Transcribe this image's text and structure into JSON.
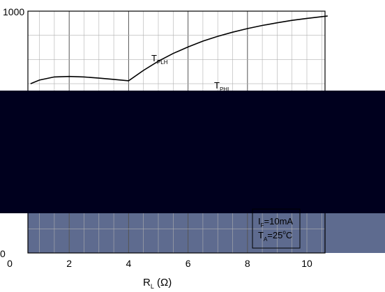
{
  "chart_data": {
    "type": "line",
    "title": "",
    "xlabel": "",
    "ylabel": "",
    "x_ticks": [
      "0",
      "2",
      "4",
      "6",
      "8",
      "10"
    ],
    "y_ticks": [
      "0",
      "1000"
    ],
    "xlim": [
      0,
      10
    ],
    "ylim": [
      0,
      1000
    ],
    "grid": true,
    "series": [
      {
        "name": "T_PLH",
        "x": [
          0.7,
          1.0,
          1.5,
          2.0,
          2.5,
          3.0,
          3.5,
          4.0,
          4.5,
          5.0,
          5.5,
          6.0,
          6.5,
          7.0,
          7.5,
          8.0,
          8.5,
          9.0,
          9.5,
          10.0,
          10.7
        ],
        "y": [
          700,
          715,
          728,
          730,
          728,
          723,
          718,
          712,
          755,
          793,
          825,
          852,
          876,
          896,
          913,
          928,
          941,
          952,
          962,
          970,
          980
        ]
      }
    ],
    "curve_labels": {
      "plh": {
        "main": "T",
        "sub": "PLH"
      },
      "phl": {
        "main": "T",
        "sub": "PHL"
      }
    },
    "xlabel_parts": {
      "main": "R",
      "sub": "L",
      "unit": " (Ω)"
    },
    "legend_box": {
      "line1_main": "I",
      "line1_sub": "F",
      "line1_rest": "=10mA",
      "line2_main": "T",
      "line2_sub": "A",
      "line2_rest": "=25",
      "line2_sup": "o",
      "line2_end": "C"
    },
    "colors": {
      "redaction": "#00001e",
      "lower_fill": "#5e6b8f",
      "axis": "#000000",
      "grid": "#b0b0b0"
    }
  }
}
